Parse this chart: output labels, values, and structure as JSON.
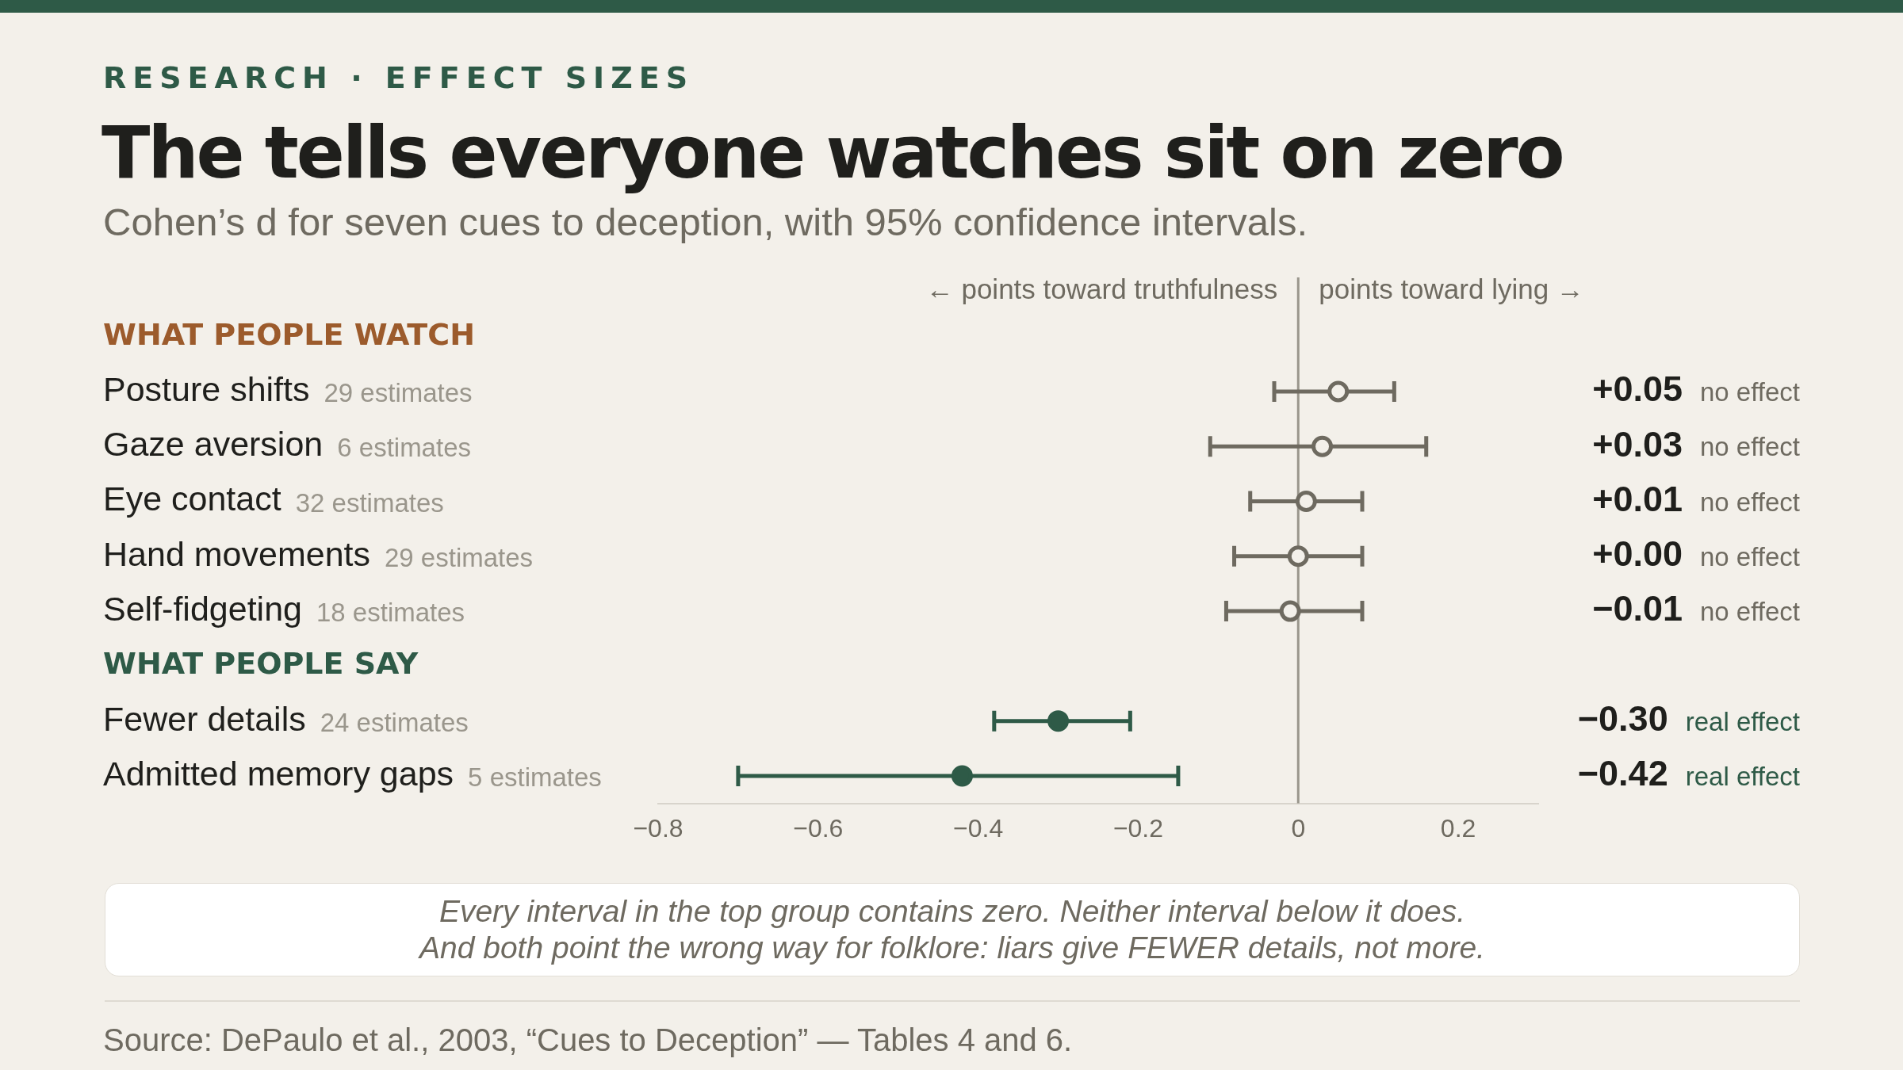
{
  "chart_data": {
    "type": "scatter",
    "orientation": "horizontal",
    "title": "The tells everyone watches sit on zero",
    "subtitle": "Cohen’s d for seven cues to deception, with 95% confidence intervals.",
    "categories": [
      "WHAT PEOPLE WATCH",
      "Posture shifts",
      "Gaze aversion",
      "Eye contact",
      "Hand movements",
      "Self-fidgeting",
      "WHAT PEOPLE SAY",
      "Fewer details",
      "Admitted memory gaps"
    ],
    "series": [
      {
        "color": "#6e6a60",
        "values": [
          null,
          0.05,
          0.03,
          0.01,
          0.0,
          -0.01,
          null,
          null,
          null
        ],
        "errors": [
          null,
          [
            -0.03,
            0.12
          ],
          [
            -0.11,
            0.16
          ],
          [
            -0.06,
            0.08
          ],
          [
            -0.08,
            0.08
          ],
          [
            -0.09,
            0.08
          ],
          null,
          null,
          null
        ],
        "value_labels": [
          null,
          "+0.05",
          "+0.03",
          "+0.01",
          "+0.00",
          "−0.01",
          null,
          null,
          null
        ]
      },
      {
        "color": "#2e5a47",
        "values": [
          null,
          null,
          null,
          null,
          null,
          null,
          null,
          -0.3,
          -0.42
        ],
        "errors": [
          null,
          null,
          null,
          null,
          null,
          null,
          null,
          [
            -0.38,
            -0.21
          ],
          [
            -0.7,
            -0.15
          ]
        ],
        "value_labels": [
          null,
          null,
          null,
          null,
          null,
          null,
          null,
          "−0.30",
          "−0.42"
        ]
      }
    ],
    "xlim": [
      -0.8,
      0.3
    ],
    "xticks": [
      {
        "value": -0.8,
        "label": "−0.8"
      },
      {
        "value": -0.6,
        "label": "−0.6"
      },
      {
        "value": -0.4,
        "label": "−0.4"
      },
      {
        "value": -0.2,
        "label": "−0.2"
      },
      0,
      0.2
    ],
    "ref_lines": [
      {
        "axis": "x",
        "value": 0,
        "color": "#9a968c"
      }
    ],
    "marker": "circle",
    "grid": false,
    "legend": false,
    "annotations": [
      "RESEARCH · EFFECT SIZES",
      "Every interval in the top group contains zero. Neither interval below it does.\nAnd both point the wrong way for folklore: liars give FEWER details, not more.",
      "Source: DePaulo et al., 2003, “Cues to Deception” — Tables 4 and 6.",
      "29 estimates",
      "6 estimates",
      "32 estimates",
      "29 estimates",
      "18 estimates",
      "24 estimates",
      "5 estimates",
      "no effect",
      "no effect",
      "no effect",
      "no effect",
      "no effect",
      "real effect",
      "real effect",
      {
        "text": "← points toward truthfulness",
        "x": 0
      },
      {
        "text": "points toward lying →",
        "x": 0
      }
    ]
  }
}
